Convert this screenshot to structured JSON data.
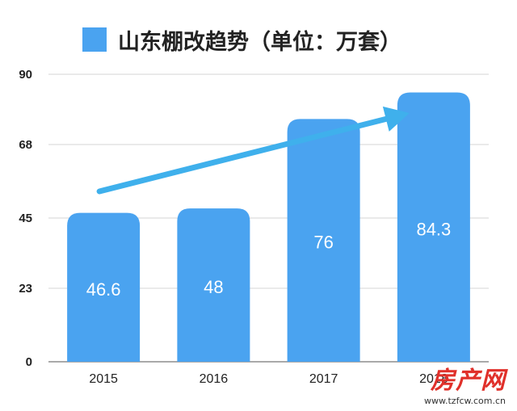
{
  "chart_data": {
    "type": "bar",
    "title": "",
    "legend": {
      "label": "山东棚改趋势（单位：万套）",
      "placement": "top"
    },
    "categories": [
      "2015",
      "2016",
      "2017",
      "2018"
    ],
    "series": [
      {
        "name": "山东棚改趋势（单位：万套）",
        "values": [
          46.6,
          48,
          76,
          84.3
        ]
      }
    ],
    "data_labels": [
      "46.6",
      "48",
      "76",
      "84.3"
    ],
    "y_ticks": [
      0,
      23,
      45,
      68,
      90
    ],
    "ylim": [
      0,
      90
    ],
    "grid": true,
    "colors": {
      "bar": "#4aa3f0",
      "arrow": "#3fb0ec",
      "label": "#ffffff"
    },
    "annotation": {
      "type": "trend-arrow",
      "from_category": "2015",
      "to_category": "2018"
    }
  },
  "watermark": {
    "text": "房产网",
    "url": "www.tzfcw.com.cn"
  }
}
